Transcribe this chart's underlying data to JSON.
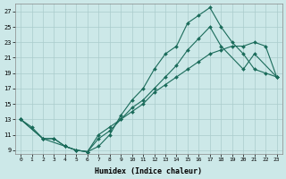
{
  "xlabel": "Humidex (Indice chaleur)",
  "bg_color": "#cce8e8",
  "grid_color": "#aacccc",
  "line_color": "#1a6b5a",
  "xlim": [
    -0.5,
    23.5
  ],
  "ylim": [
    8.5,
    28
  ],
  "yticks": [
    9,
    11,
    13,
    15,
    17,
    19,
    21,
    23,
    25,
    27
  ],
  "xticks": [
    0,
    1,
    2,
    3,
    4,
    5,
    6,
    7,
    8,
    9,
    10,
    11,
    12,
    13,
    14,
    15,
    16,
    17,
    18,
    19,
    20,
    21,
    22,
    23
  ],
  "line1_x": [
    0,
    1,
    2,
    3,
    4,
    5,
    6,
    7,
    8,
    9,
    10,
    11,
    12,
    13,
    14,
    15,
    16,
    17,
    18,
    19,
    20,
    21,
    22,
    23
  ],
  "line1_y": [
    13,
    12,
    10.5,
    10.5,
    9.5,
    9.0,
    8.8,
    9.5,
    11.0,
    13.5,
    15.5,
    17.0,
    19.5,
    21.5,
    22.5,
    25.5,
    26.5,
    27.5,
    25.0,
    23.0,
    21.5,
    19.5,
    19.0,
    18.5
  ],
  "line2_x": [
    0,
    2,
    3,
    4,
    5,
    6,
    7,
    8,
    9,
    10,
    11,
    12,
    13,
    14,
    15,
    16,
    17,
    18,
    20,
    21,
    23
  ],
  "line2_y": [
    13,
    10.5,
    10.5,
    9.5,
    9.0,
    8.8,
    10.5,
    11.5,
    13.0,
    14.5,
    15.5,
    17.0,
    18.5,
    20.0,
    22.0,
    23.5,
    25.0,
    22.5,
    19.5,
    21.5,
    18.5
  ],
  "line3_x": [
    0,
    2,
    4,
    5,
    6,
    7,
    8,
    9,
    10,
    11,
    12,
    13,
    14,
    15,
    16,
    17,
    18,
    19,
    20,
    21,
    22,
    23
  ],
  "line3_y": [
    13,
    10.5,
    9.5,
    9.0,
    8.8,
    11.0,
    12.0,
    13.0,
    14.0,
    15.0,
    16.5,
    17.5,
    18.5,
    19.5,
    20.5,
    21.5,
    22.0,
    22.5,
    22.5,
    23.0,
    22.5,
    18.5
  ]
}
